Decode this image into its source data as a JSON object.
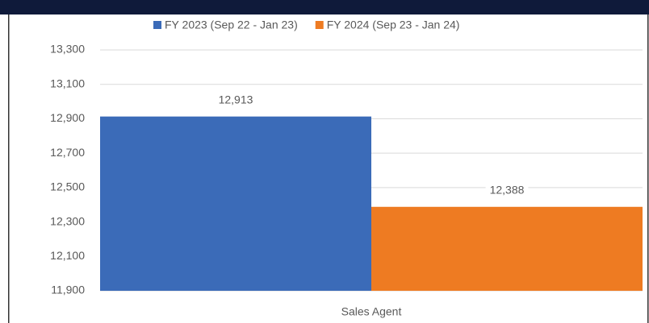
{
  "chart_data": {
    "type": "bar",
    "categories": [
      "Sales Agent"
    ],
    "series": [
      {
        "name": "FY 2023 (Sep 22 - Jan 23)",
        "color": "#3b6bb8",
        "values": [
          12913
        ],
        "value_labels": [
          "12,913"
        ]
      },
      {
        "name": "FY 2024 (Sep 23 - Jan 24)",
        "color": "#ee7b22",
        "values": [
          12388
        ],
        "value_labels": [
          "12,388"
        ]
      }
    ],
    "ylim": [
      11900,
      13300
    ],
    "yticks": [
      {
        "value": 11900,
        "label": "11,900"
      },
      {
        "value": 12100,
        "label": "12,100"
      },
      {
        "value": 12300,
        "label": "12,300"
      },
      {
        "value": 12500,
        "label": "12,500"
      },
      {
        "value": 12700,
        "label": "12,700"
      },
      {
        "value": 12900,
        "label": "12,900"
      },
      {
        "value": 13100,
        "label": "13,100"
      },
      {
        "value": 13300,
        "label": "13,300"
      }
    ],
    "grid": true,
    "legend": "top"
  }
}
